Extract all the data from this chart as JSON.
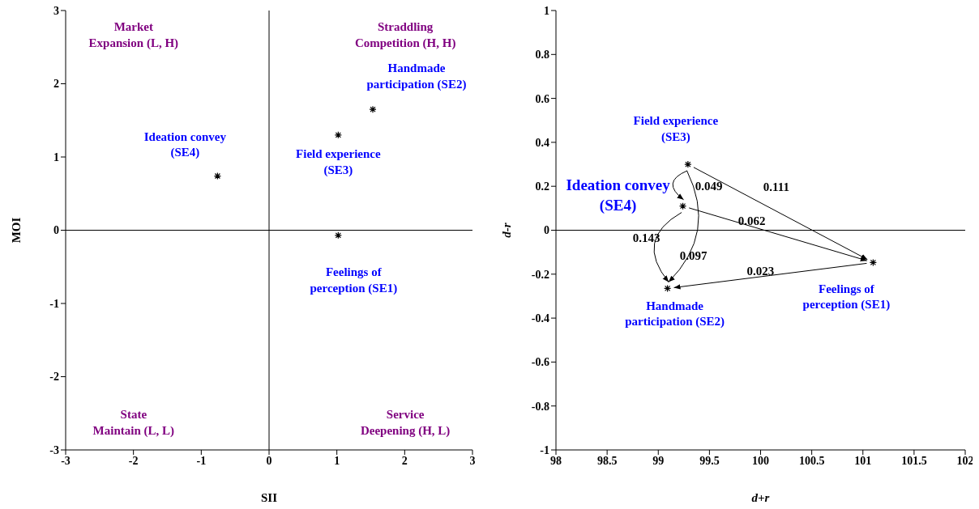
{
  "chart_data": [
    {
      "type": "scatter",
      "xlabel": "SII",
      "ylabel": "MOI",
      "x": [
        1.53,
        1.02,
        -0.76,
        1.02
      ],
      "values": [
        1.65,
        1.3,
        0.74,
        -0.07
      ],
      "color": "#000000",
      "marker": "cross",
      "xlim": [
        -3,
        3
      ],
      "xticks": [
        -3,
        -2,
        -1,
        0,
        1,
        2,
        3
      ],
      "ylim": [
        -3,
        3
      ],
      "yticks": [
        -3,
        -2,
        -1,
        0,
        1,
        2,
        3
      ],
      "grid": false,
      "ref_lines": [
        {
          "axis": "x",
          "value": 0
        },
        {
          "axis": "y",
          "value": 0
        }
      ],
      "annotations": [
        "Market\nExpansion (L, H)",
        "Straddling\nCompetition (H, H)",
        "State\nMaintain (L, L)",
        "Service\nDeepening (H, L)",
        "Handmade\nparticipation (SE2)",
        "Field experience\n(SE3)",
        "Ideation convey\n(SE4)",
        "Feelings of\nperception (SE1)"
      ]
    },
    {
      "type": "scatter",
      "xlabel": "d+r",
      "ylabel": "d-r",
      "x": [
        99.29,
        99.24,
        101.1,
        99.09
      ],
      "values": [
        0.3,
        0.11,
        -0.147,
        -0.265
      ],
      "color": "#000000",
      "marker": "cross",
      "xlim": [
        98,
        102
      ],
      "xticks": [
        98,
        98.5,
        99,
        99.5,
        100,
        100.5,
        101,
        101.5,
        102
      ],
      "ylim": [
        -1,
        1
      ],
      "yticks": [
        -1,
        -0.8,
        -0.6,
        -0.4,
        -0.2,
        0,
        0.2,
        0.4,
        0.6,
        0.8,
        1
      ],
      "grid": false,
      "ref_lines": [
        {
          "axis": "y",
          "value": 0
        }
      ],
      "annotations": [
        "Field experience\n(SE3)",
        {
          "text": "Ideation convey\n(SE4)",
          "x": 99.24,
          "y": 0.11
        },
        "Feelings of\nperception (SE1)",
        "Handmade\nparticipation (SE2)",
        {
          "text": "0.049",
          "x": 99.24,
          "y": 0.11
        },
        "0.111",
        "0.062",
        "0.143",
        "0.097",
        "0.023"
      ]
    }
  ]
}
